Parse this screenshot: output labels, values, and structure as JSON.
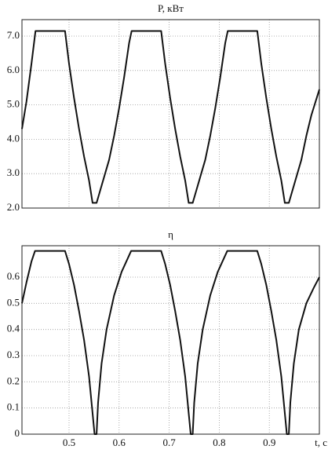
{
  "chart_data": [
    {
      "type": "line",
      "title": "P, кВт",
      "color": "#111111",
      "grid": true,
      "xtick_labels": false,
      "xlim": [
        0.406,
        1.0
      ],
      "ylim": [
        2.0,
        7.48
      ],
      "xticks": [
        0.5,
        0.6,
        0.7,
        0.8,
        0.9
      ],
      "yticks": [
        {
          "value": 2,
          "label": "2.0"
        },
        {
          "value": 3,
          "label": "3.0"
        },
        {
          "value": 4,
          "label": "4.0"
        },
        {
          "value": 5,
          "label": "5.0"
        },
        {
          "value": 6,
          "label": "6.0"
        },
        {
          "value": 7,
          "label": "7.0"
        }
      ],
      "x": [
        0.406,
        0.415,
        0.425,
        0.433,
        0.492,
        0.5,
        0.51,
        0.52,
        0.53,
        0.54,
        0.547,
        0.555,
        0.56,
        0.57,
        0.58,
        0.59,
        0.6,
        0.61,
        0.62,
        0.625,
        0.684,
        0.692,
        0.702,
        0.712,
        0.722,
        0.732,
        0.739,
        0.747,
        0.752,
        0.762,
        0.772,
        0.782,
        0.792,
        0.802,
        0.812,
        0.817,
        0.876,
        0.884,
        0.894,
        0.904,
        0.914,
        0.924,
        0.931,
        0.939,
        0.944,
        0.954,
        0.964,
        0.974,
        0.984,
        1.0
      ],
      "values": [
        4.3,
        5.1,
        6.2,
        7.15,
        7.15,
        6.2,
        5.2,
        4.3,
        3.5,
        2.8,
        2.15,
        2.15,
        2.4,
        2.9,
        3.4,
        4.1,
        4.9,
        5.8,
        6.8,
        7.15,
        7.15,
        6.2,
        5.2,
        4.3,
        3.5,
        2.8,
        2.15,
        2.15,
        2.4,
        2.9,
        3.4,
        4.1,
        4.9,
        5.8,
        6.8,
        7.15,
        7.15,
        6.2,
        5.2,
        4.3,
        3.5,
        2.8,
        2.15,
        2.15,
        2.4,
        2.9,
        3.4,
        4.1,
        4.7,
        5.45
      ]
    },
    {
      "type": "line",
      "title": "η",
      "x_label": "t, c",
      "color": "#111111",
      "grid": true,
      "xtick_labels": true,
      "xlim": [
        0.406,
        1.0
      ],
      "ylim": [
        0,
        0.72
      ],
      "xticks": [
        0.5,
        0.6,
        0.7,
        0.8,
        0.9
      ],
      "yticks": [
        0,
        0.1,
        0.2,
        0.3,
        0.4,
        0.5,
        0.6
      ],
      "x": [
        0.406,
        0.415,
        0.425,
        0.432,
        0.492,
        0.5,
        0.51,
        0.52,
        0.53,
        0.54,
        0.546,
        0.551,
        0.555,
        0.558,
        0.565,
        0.575,
        0.59,
        0.605,
        0.624,
        0.684,
        0.692,
        0.702,
        0.712,
        0.722,
        0.732,
        0.738,
        0.743,
        0.747,
        0.75,
        0.757,
        0.767,
        0.782,
        0.797,
        0.816,
        0.876,
        0.884,
        0.894,
        0.904,
        0.914,
        0.924,
        0.93,
        0.935,
        0.939,
        0.942,
        0.949,
        0.959,
        0.974,
        0.989,
        1.0
      ],
      "values": [
        0.5,
        0.58,
        0.66,
        0.7,
        0.7,
        0.65,
        0.57,
        0.47,
        0.36,
        0.22,
        0.1,
        0,
        0,
        0.12,
        0.27,
        0.4,
        0.53,
        0.62,
        0.7,
        0.7,
        0.65,
        0.57,
        0.47,
        0.36,
        0.22,
        0.1,
        0,
        0,
        0.12,
        0.27,
        0.4,
        0.53,
        0.62,
        0.7,
        0.7,
        0.65,
        0.57,
        0.47,
        0.36,
        0.22,
        0.1,
        0,
        0,
        0.12,
        0.27,
        0.4,
        0.5,
        0.56,
        0.6
      ]
    }
  ]
}
